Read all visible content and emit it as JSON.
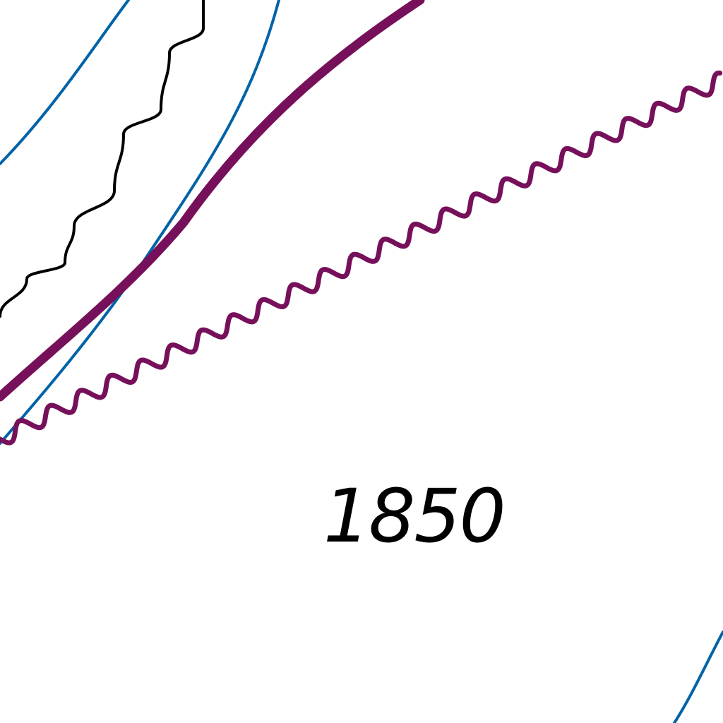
{
  "map": {
    "colors": {
      "background": "#ffffff",
      "water_line": "#0063a8",
      "boundary_line": "#76105a",
      "contour_line": "#000000",
      "label_text": "#000000"
    },
    "features": [
      {
        "name": "water-line",
        "color": "#0063a8"
      },
      {
        "name": "boundary-line",
        "color": "#76105a"
      },
      {
        "name": "boundary-wavy-line",
        "color": "#76105a"
      },
      {
        "name": "contour-wavy-line",
        "color": "#000000"
      }
    ],
    "labels": {
      "elevation": "1850"
    }
  }
}
